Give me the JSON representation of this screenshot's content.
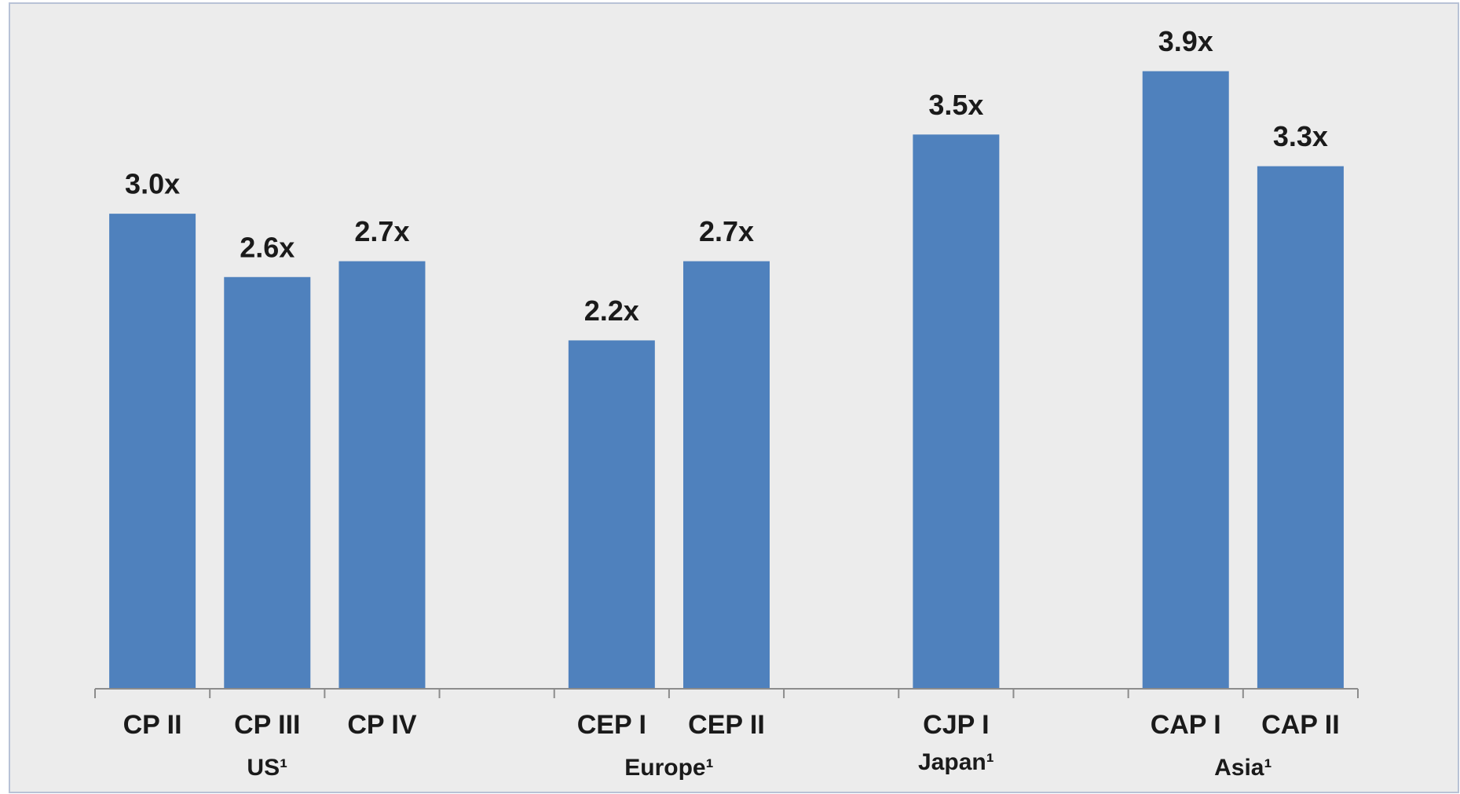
{
  "chart_data": {
    "type": "bar",
    "categories": [
      "CP II",
      "CP III",
      "CP IV",
      null,
      "CEP I",
      "CEP II",
      null,
      "CJP I",
      null,
      "CAP I",
      "CAP II"
    ],
    "values": [
      3.0,
      2.6,
      2.7,
      null,
      2.2,
      2.7,
      null,
      3.5,
      null,
      3.9,
      3.3
    ],
    "value_labels": [
      "3.0x",
      "2.6x",
      "2.7x",
      null,
      "2.2x",
      "2.7x",
      null,
      "3.5x",
      null,
      "3.9x",
      "3.3x"
    ],
    "groups": [
      "US¹",
      "Europe¹",
      "Japan¹",
      "Asia¹"
    ],
    "color": "#4f81bd",
    "ylim": [
      0,
      4.3
    ]
  }
}
